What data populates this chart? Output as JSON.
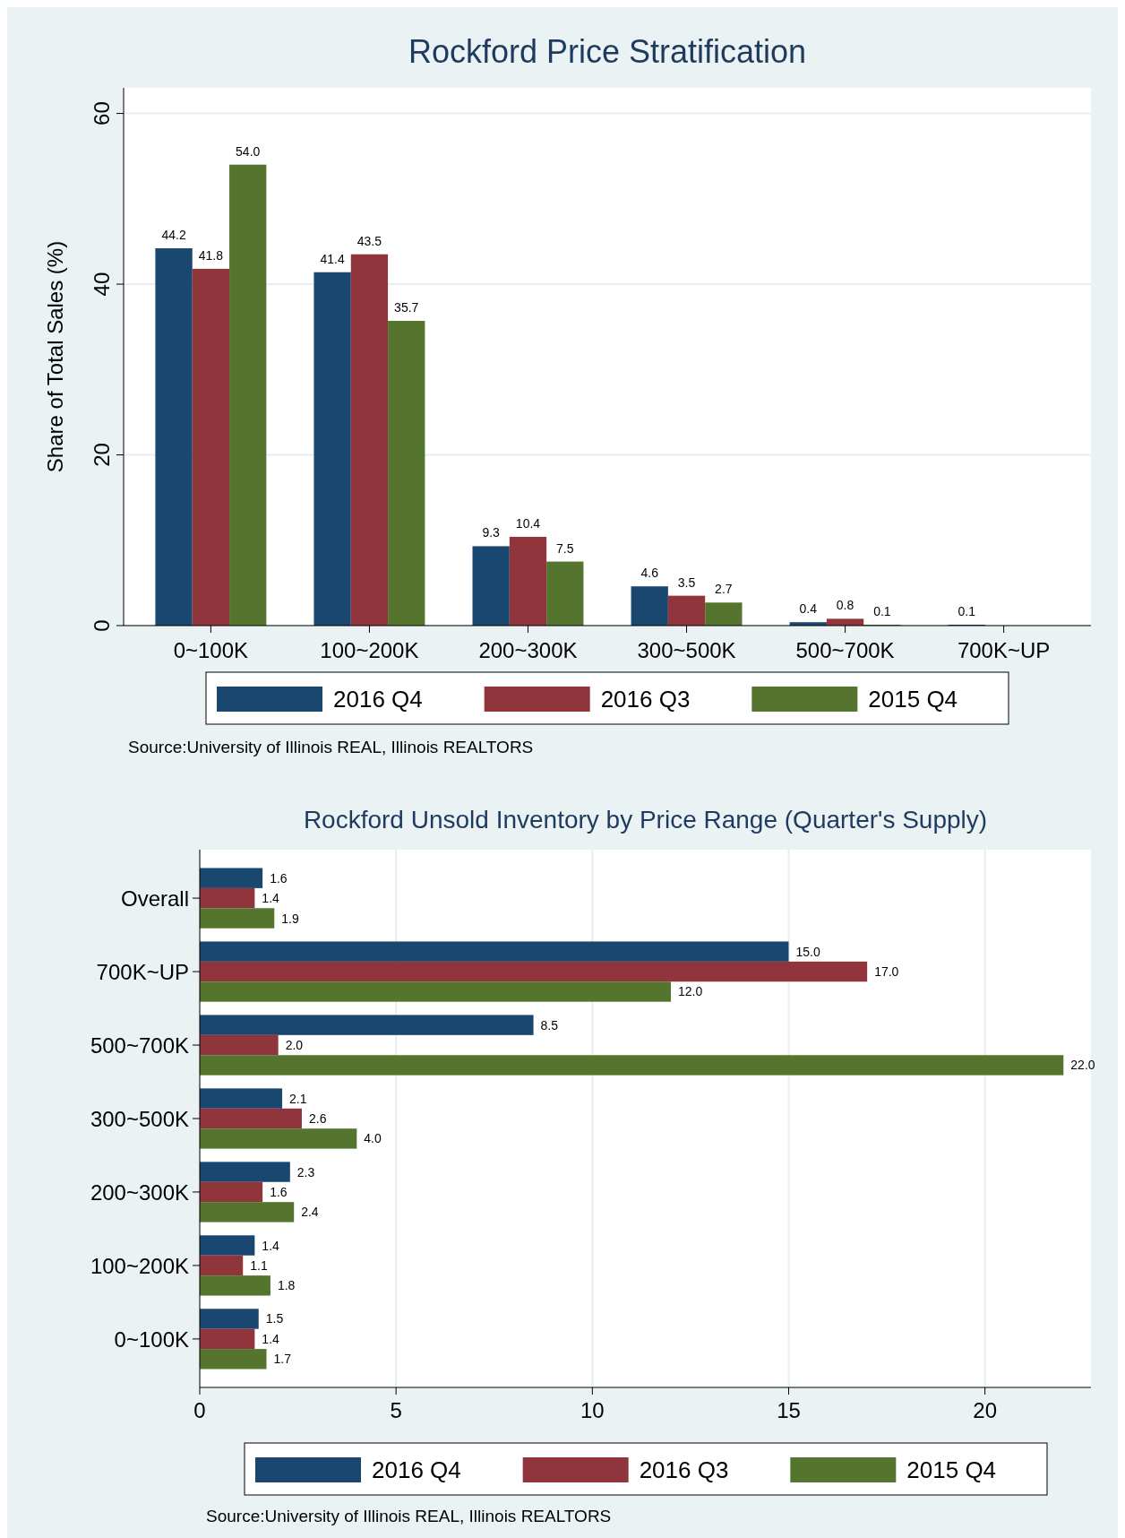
{
  "chart_data": [
    {
      "type": "bar",
      "title": "Rockford Price Stratification",
      "ylabel": "Share of Total Sales (%)",
      "categories": [
        "0~100K",
        "100~200K",
        "200~300K",
        "300~500K",
        "500~700K",
        "700K~UP"
      ],
      "ylim": [
        0,
        63
      ],
      "yticks": [
        0,
        20,
        40,
        60
      ],
      "grid": "y",
      "legend": "bottom",
      "annotations": [
        "Source:University of Illinois REAL, Illinois REALTORS"
      ],
      "series": [
        {
          "name": "2016 Q4",
          "color": "#1a476f",
          "values": [
            44.2,
            41.4,
            9.3,
            4.6,
            0.4,
            0.1
          ],
          "value_labels": [
            "44.2",
            "41.4",
            "9.3",
            "4.6",
            "0.4",
            "0.1"
          ]
        },
        {
          "name": "2016 Q3",
          "color": "#90353b",
          "values": [
            41.8,
            43.5,
            10.4,
            3.5,
            0.8,
            null
          ],
          "value_labels": [
            "41.8",
            "43.5",
            "10.4",
            "3.5",
            "0.8",
            null
          ]
        },
        {
          "name": "2015 Q4",
          "color": "#55752f",
          "values": [
            54.0,
            35.7,
            7.5,
            2.7,
            0.1,
            null
          ],
          "value_labels": [
            "54.0",
            "35.7",
            "7.5",
            "2.7",
            "0.1",
            null
          ]
        }
      ]
    },
    {
      "type": "bar",
      "orientation": "horizontal",
      "title": "Rockford Unsold Inventory by Price Range (Quarter's Supply)",
      "categories": [
        "Overall",
        "700K~UP",
        "500~700K",
        "300~500K",
        "200~300K",
        "100~200K",
        "0~100K"
      ],
      "xlim": [
        0,
        22.7
      ],
      "xticks": [
        0,
        5,
        10,
        15,
        20
      ],
      "grid": "x",
      "legend": "bottom",
      "annotations": [
        "Source:University of Illinois REAL, Illinois REALTORS"
      ],
      "series": [
        {
          "name": "2016 Q4",
          "color": "#1a476f",
          "values": [
            1.6,
            15.0,
            8.5,
            2.1,
            2.3,
            1.4,
            1.5
          ],
          "value_labels": [
            "1.6",
            "15.0",
            "8.5",
            "2.1",
            "2.3",
            "1.4",
            "1.5"
          ]
        },
        {
          "name": "2016 Q3",
          "color": "#90353b",
          "values": [
            1.4,
            17.0,
            2.0,
            2.6,
            1.6,
            1.1,
            1.4
          ],
          "value_labels": [
            "1.4",
            "17.0",
            "2.0",
            "2.6",
            "1.6",
            "1.1",
            "1.4"
          ]
        },
        {
          "name": "2015 Q4",
          "color": "#55752f",
          "values": [
            1.9,
            12.0,
            22.0,
            4.0,
            2.4,
            1.8,
            1.7
          ],
          "value_labels": [
            "1.9",
            "12.0",
            "22.0",
            "4.0",
            "2.4",
            "1.8",
            "1.7"
          ]
        }
      ]
    }
  ]
}
